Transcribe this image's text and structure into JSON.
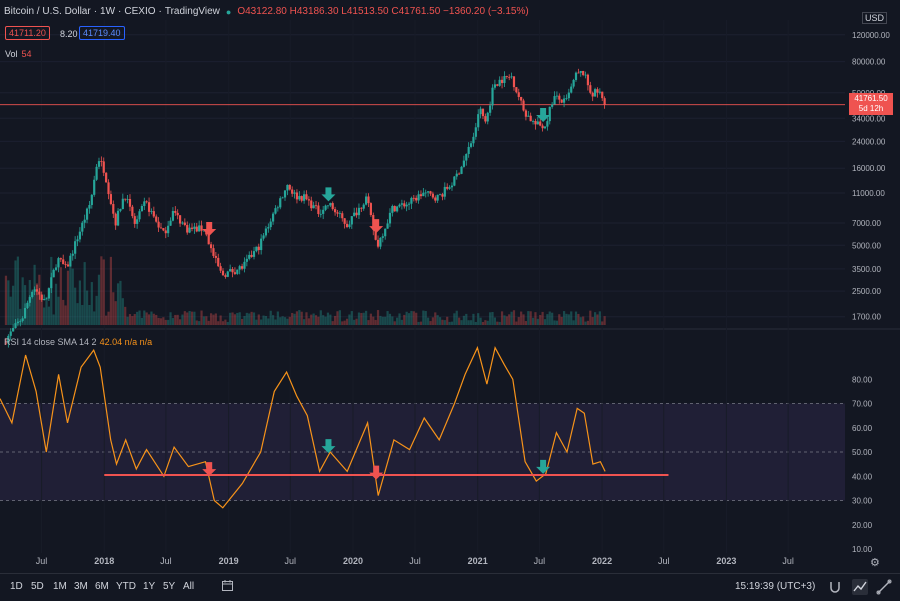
{
  "header": {
    "symbol": "Bitcoin / U.S. Dollar",
    "interval": "1W",
    "exchange": "CEXIO",
    "source": "TradingView",
    "ohlc": "O43122.80 H43186.30 L41513.50 C41761.50 −1360.20 (−3.15%)"
  },
  "quote": {
    "sell": "41711.20",
    "spread": "8.20",
    "buy": "41719.40"
  },
  "volume": {
    "label": "Vol",
    "value": "54"
  },
  "rsi_legend": {
    "label": "RSI 14 close SMA 14 2",
    "value": "42.04 n/a n/a"
  },
  "price_axis": {
    "currency": "USD",
    "ticks": [
      "120000.00",
      "80000.00",
      "50000.00",
      "34000.00",
      "24000.00",
      "16000.00",
      "11000.00",
      "7000.00",
      "5000.00",
      "3500.00",
      "2500.00",
      "1700.00"
    ],
    "last_price": "41761.50",
    "countdown": "5d 12h"
  },
  "rsi_axis": {
    "ticks": [
      "80.00",
      "70.00",
      "60.00",
      "50.00",
      "40.00",
      "30.00",
      "20.00",
      "10.00"
    ]
  },
  "time_axis": {
    "ticks": [
      "Jul",
      "2018",
      "Jul",
      "2019",
      "Jul",
      "2020",
      "Jul",
      "2021",
      "Jul",
      "2022",
      "Jul",
      "2023",
      "Jul"
    ]
  },
  "toolbar": {
    "ranges": [
      "1D",
      "5D",
      "1M",
      "3M",
      "6M",
      "YTD",
      "1Y",
      "5Y",
      "All"
    ],
    "time": "15:19:39 (UTC+3)"
  },
  "colors": {
    "up": "#26a69a",
    "down": "#ef5350",
    "rsi": "#f7931a",
    "support": "#ef5350",
    "background": "#131722"
  },
  "chart_data": [
    {
      "type": "candlestick",
      "interval": "1W",
      "y_scale": "log",
      "ylim": [
        1500,
        150000
      ],
      "xlim": [
        "2017-03-01",
        "2023-12-15"
      ],
      "last_price": 41761.5,
      "price_path": [
        [
          "2017-03-15",
          1150
        ],
        [
          "2017-05-10",
          1700
        ],
        [
          "2017-06-10",
          2700
        ],
        [
          "2017-07-15",
          2100
        ],
        [
          "2017-08-20",
          4100
        ],
        [
          "2017-09-15",
          3500
        ],
        [
          "2017-10-20",
          5800
        ],
        [
          "2017-11-25",
          9500
        ],
        [
          "2017-12-17",
          19000
        ],
        [
          "2018-01-05",
          15500
        ],
        [
          "2018-02-06",
          7000
        ],
        [
          "2018-03-05",
          11000
        ],
        [
          "2018-04-05",
          6800
        ],
        [
          "2018-05-05",
          9600
        ],
        [
          "2018-06-28",
          5900
        ],
        [
          "2018-07-25",
          8300
        ],
        [
          "2018-09-05",
          6400
        ],
        [
          "2018-10-25",
          6400
        ],
        [
          "2018-11-20",
          4300
        ],
        [
          "2018-12-15",
          3200
        ],
        [
          "2019-02-15",
          3600
        ],
        [
          "2019-04-05",
          5000
        ],
        [
          "2019-05-15",
          8000
        ],
        [
          "2019-06-26",
          12500
        ],
        [
          "2019-07-20",
          10500
        ],
        [
          "2019-08-15",
          10300
        ],
        [
          "2019-09-25",
          8300
        ],
        [
          "2019-10-26",
          9300
        ],
        [
          "2019-12-18",
          6800
        ],
        [
          "2020-02-13",
          10300
        ],
        [
          "2020-03-15",
          4900
        ],
        [
          "2020-04-30",
          8800
        ],
        [
          "2020-06-15",
          9400
        ],
        [
          "2020-07-28",
          11000
        ],
        [
          "2020-09-10",
          10300
        ],
        [
          "2020-10-25",
          13000
        ],
        [
          "2020-11-28",
          18500
        ],
        [
          "2020-12-31",
          29000
        ],
        [
          "2021-01-08",
          40000
        ],
        [
          "2021-01-28",
          32000
        ],
        [
          "2021-02-21",
          57000
        ],
        [
          "2021-03-14",
          61000
        ],
        [
          "2021-04-14",
          64000
        ],
        [
          "2021-05-20",
          38000
        ],
        [
          "2021-06-22",
          31000
        ],
        [
          "2021-07-20",
          30000
        ],
        [
          "2021-08-15",
          47000
        ],
        [
          "2021-09-20",
          43000
        ],
        [
          "2021-10-20",
          65000
        ],
        [
          "2021-11-10",
          68000
        ],
        [
          "2021-12-05",
          49000
        ],
        [
          "2021-12-27",
          51000
        ],
        [
          "2022-01-10",
          41761.5
        ]
      ],
      "buy_signals": [
        "2019-10-21",
        "2021-07-12"
      ],
      "sell_signals": [
        "2018-11-05",
        "2020-03-09"
      ]
    },
    {
      "type": "line",
      "name": "RSI 14 close",
      "ylim": [
        10,
        90
      ],
      "band": [
        30,
        70
      ],
      "support_level": 40.5,
      "current_value": 42.04,
      "points": [
        [
          "2017-03-01",
          72
        ],
        [
          "2017-04-05",
          62
        ],
        [
          "2017-05-15",
          90
        ],
        [
          "2017-06-15",
          75
        ],
        [
          "2017-07-15",
          50
        ],
        [
          "2017-08-20",
          82
        ],
        [
          "2017-09-15",
          62
        ],
        [
          "2017-10-25",
          85
        ],
        [
          "2017-12-01",
          92
        ],
        [
          "2017-12-20",
          85
        ],
        [
          "2018-01-20",
          55
        ],
        [
          "2018-02-06",
          45
        ],
        [
          "2018-03-05",
          55
        ],
        [
          "2018-04-05",
          43
        ],
        [
          "2018-05-05",
          51
        ],
        [
          "2018-06-25",
          40
        ],
        [
          "2018-07-25",
          52
        ],
        [
          "2018-09-05",
          44
        ],
        [
          "2018-10-25",
          46
        ],
        [
          "2018-11-20",
          30
        ],
        [
          "2018-12-15",
          27
        ],
        [
          "2019-02-10",
          37
        ],
        [
          "2019-04-05",
          50
        ],
        [
          "2019-05-15",
          75
        ],
        [
          "2019-06-20",
          83
        ],
        [
          "2019-07-20",
          73
        ],
        [
          "2019-08-20",
          65
        ],
        [
          "2019-09-25",
          42
        ],
        [
          "2019-10-26",
          50
        ],
        [
          "2019-12-15",
          42
        ],
        [
          "2020-02-13",
          62
        ],
        [
          "2020-03-15",
          32
        ],
        [
          "2020-04-30",
          55
        ],
        [
          "2020-06-15",
          51
        ],
        [
          "2020-07-28",
          64
        ],
        [
          "2020-09-10",
          55
        ],
        [
          "2020-10-25",
          70
        ],
        [
          "2020-11-25",
          82
        ],
        [
          "2020-12-31",
          93
        ],
        [
          "2021-01-28",
          78
        ],
        [
          "2021-02-21",
          93
        ],
        [
          "2021-03-20",
          86
        ],
        [
          "2021-04-14",
          80
        ],
        [
          "2021-05-20",
          46
        ],
        [
          "2021-06-22",
          38
        ],
        [
          "2021-07-20",
          41
        ],
        [
          "2021-08-20",
          58
        ],
        [
          "2021-09-20",
          50
        ],
        [
          "2021-10-20",
          68
        ],
        [
          "2021-11-10",
          66
        ],
        [
          "2021-12-05",
          45
        ],
        [
          "2021-12-27",
          46
        ],
        [
          "2022-01-10",
          42
        ]
      ],
      "buy_signals": [
        "2019-10-21",
        "2021-07-12"
      ],
      "sell_signals": [
        "2018-11-05",
        "2020-03-09"
      ]
    }
  ]
}
